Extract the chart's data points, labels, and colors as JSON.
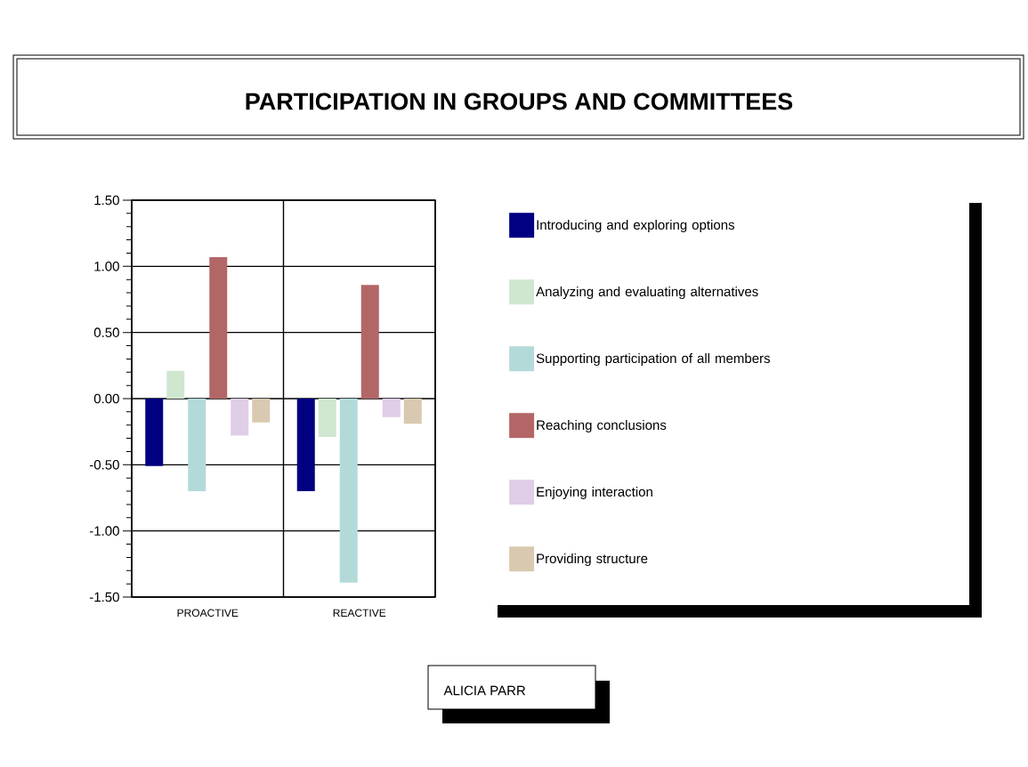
{
  "chart_data": {
    "type": "bar",
    "title": "PARTICIPATION IN GROUPS AND COMMITTEES",
    "categories": [
      "PROACTIVE",
      "REACTIVE"
    ],
    "series": [
      {
        "name": "Introducing and exploring options",
        "color": "#000080",
        "values": [
          -0.51,
          -0.7
        ]
      },
      {
        "name": "Analyzing and evaluating alternatives",
        "color": "#cfe6cf",
        "values": [
          0.21,
          -0.29
        ]
      },
      {
        "name": "Supporting participation of all members",
        "color": "#b3dad9",
        "values": [
          -0.7,
          -1.39
        ]
      },
      {
        "name": "Reaching conclusions",
        "color": "#b36666",
        "values": [
          1.07,
          0.86
        ]
      },
      {
        "name": "Enjoying interaction",
        "color": "#e0cde6",
        "values": [
          -0.28,
          -0.14
        ]
      },
      {
        "name": "Providing structure",
        "color": "#d9c9b0",
        "values": [
          -0.18,
          -0.19
        ]
      }
    ],
    "ylim": [
      -1.5,
      1.5
    ],
    "yticks": [
      {
        "value": -1.5,
        "label": "-1.50"
      },
      {
        "value": -1.0,
        "label": "-1.00"
      },
      {
        "value": -0.5,
        "label": "-0.50"
      },
      {
        "value": 0.0,
        "label": "0.00"
      },
      {
        "value": 0.5,
        "label": "0.50"
      },
      {
        "value": 1.0,
        "label": "1.00"
      },
      {
        "value": 1.5,
        "label": "1.50"
      }
    ],
    "grid": "y",
    "legend": "right",
    "annotations": [
      "ALICIA PARR"
    ]
  }
}
